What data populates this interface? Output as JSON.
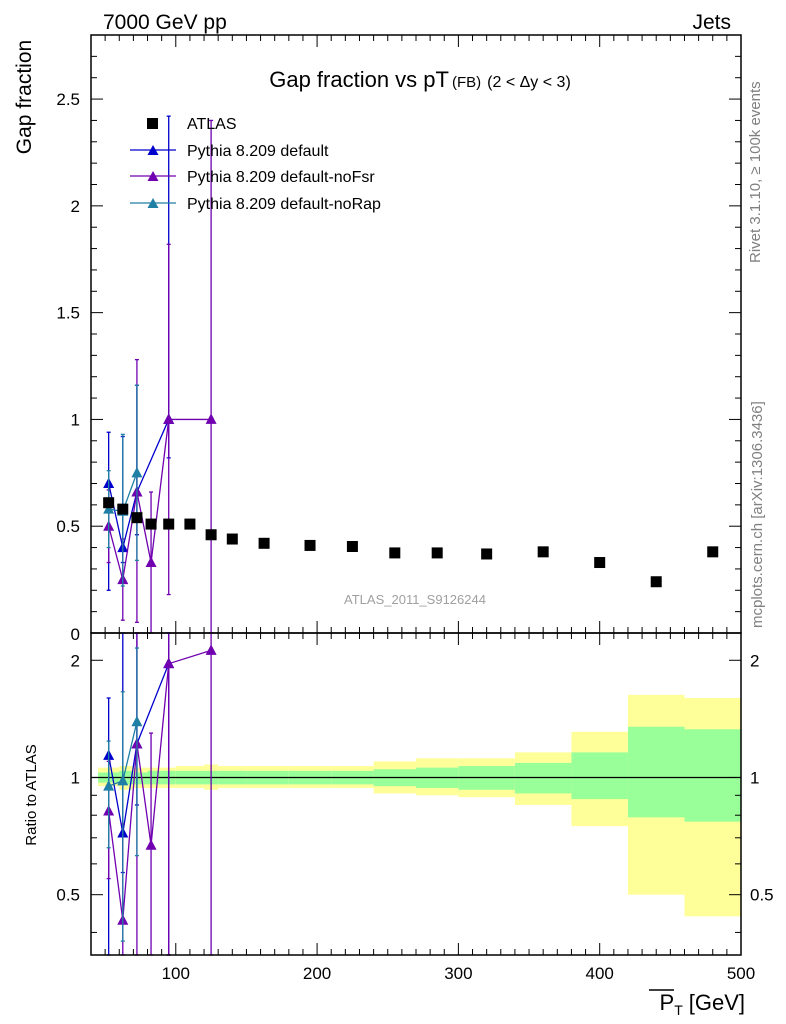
{
  "header": {
    "left": "7000 GeV pp",
    "right": "Jets"
  },
  "side_labels": {
    "rivet": "Rivet 3.1.10, ≥ 100k events",
    "mcplots": "mcplots.cern.ch [arXiv:1306.3436]"
  },
  "colors": {
    "data": "#000000",
    "default": "#0000cc",
    "noFsr": "#7000b0",
    "noRap": "#1f7fa5",
    "band_outer": "#ffff99",
    "band_inner": "#99ff99"
  },
  "chart_data": [
    {
      "type": "scatter",
      "title_main": "Gap fraction vs pT",
      "title_sub": "(FB)",
      "title_range": "(2 < Δy < 3)",
      "ylabel": "Gap fraction",
      "watermark": "ATLAS_2011_S9126244",
      "xlim": [
        40,
        500
      ],
      "ylim": [
        0,
        2.8
      ],
      "yticks": [
        0.5,
        1,
        1.5,
        2,
        2.5
      ],
      "ytick_labels": [
        "0.5",
        "1",
        "1.5",
        "2",
        "2.5"
      ],
      "y_zero_label": "0",
      "legend": {
        "position": "top-left",
        "entries": [
          "ATLAS",
          "Pythia 8.209 default",
          "Pythia 8.209 default-noFsr",
          "Pythia 8.209 default-noRap"
        ]
      },
      "series": [
        {
          "name": "ATLAS",
          "marker": "square",
          "x": [
            52.5,
            62.5,
            72.5,
            82.5,
            95,
            110,
            125,
            140,
            162.5,
            195,
            225,
            255,
            285,
            320,
            360,
            400,
            440,
            480
          ],
          "y": [
            0.61,
            0.58,
            0.54,
            0.51,
            0.51,
            0.51,
            0.46,
            0.44,
            0.42,
            0.41,
            0.405,
            0.375,
            0.375,
            0.37,
            0.38,
            0.33,
            0.24,
            0.38
          ]
        },
        {
          "name": "Pythia 8.209 default",
          "marker": "triangle",
          "x": [
            52.5,
            62.5,
            72.5,
            95
          ],
          "y": [
            0.7,
            0.4,
            0.66,
            1.0
          ],
          "yerr_low": [
            0.2,
            0.33,
            0.46,
            0.82
          ],
          "yerr_high": [
            0.94,
            0.92,
            1.16,
            2.42
          ]
        },
        {
          "name": "Pythia 8.209 default-noFsr",
          "marker": "triangle",
          "x": [
            52.5,
            62.5,
            72.5,
            82.5,
            95,
            125
          ],
          "y": [
            0.5,
            0.25,
            0.66,
            0.33,
            1.0,
            1.0
          ],
          "yerr_low": [
            0.33,
            0.06,
            0.05,
            0.0,
            0.18,
            0.0
          ],
          "yerr_high": [
            0.67,
            0.44,
            1.28,
            0.66,
            1.82,
            2.4
          ]
        },
        {
          "name": "Pythia 8.209 default-noRap",
          "marker": "triangle",
          "x": [
            52.5,
            62.5,
            72.5
          ],
          "y": [
            0.58,
            0.57,
            0.75
          ],
          "yerr_low": [
            0.4,
            0.22,
            0.34
          ],
          "yerr_high": [
            0.76,
            0.93,
            1.16
          ]
        }
      ]
    },
    {
      "type": "line",
      "ylabel": "Ratio to ATLAS",
      "xlabel_main": "P",
      "xlabel_sub": "T",
      "xlabel_unit": "[GeV]",
      "xlim": [
        40,
        500
      ],
      "ylim": [
        0.35,
        2.35
      ],
      "ylog": true,
      "xticks": [
        100,
        200,
        300,
        400,
        500
      ],
      "xtick_labels": [
        "100",
        "200",
        "300",
        "400",
        "500"
      ],
      "yticks": [
        0.5,
        1,
        2
      ],
      "ytick_labels": [
        "0.5",
        "1",
        "2"
      ],
      "bands": {
        "edges": [
          45,
          60,
          70,
          80,
          90,
          100,
          120,
          130,
          150,
          180,
          210,
          240,
          270,
          300,
          340,
          380,
          420,
          460,
          500
        ],
        "outer_low": [
          0.95,
          0.93,
          0.94,
          0.94,
          0.94,
          0.94,
          0.93,
          0.94,
          0.94,
          0.94,
          0.94,
          0.91,
          0.9,
          0.89,
          0.85,
          0.75,
          0.5,
          0.44
        ],
        "outer_high": [
          1.06,
          1.07,
          1.06,
          1.06,
          1.06,
          1.07,
          1.08,
          1.07,
          1.07,
          1.07,
          1.07,
          1.1,
          1.12,
          1.12,
          1.16,
          1.31,
          1.63,
          1.6
        ],
        "inner_low": [
          0.97,
          0.96,
          0.96,
          0.96,
          0.96,
          0.96,
          0.96,
          0.96,
          0.96,
          0.96,
          0.96,
          0.95,
          0.94,
          0.93,
          0.91,
          0.88,
          0.79,
          0.77
        ],
        "inner_high": [
          1.03,
          1.04,
          1.03,
          1.04,
          1.04,
          1.04,
          1.04,
          1.04,
          1.04,
          1.04,
          1.04,
          1.05,
          1.06,
          1.07,
          1.09,
          1.16,
          1.35,
          1.33
        ]
      },
      "series": [
        {
          "name": "Pythia 8.209 default",
          "marker": "triangle",
          "x": [
            52.5,
            62.5,
            72.5,
            95
          ],
          "y": [
            1.14,
            0.72,
            1.22,
            1.96
          ],
          "yerr_low": [
            0.33,
            0.57,
            0.85,
            0.35
          ],
          "yerr_high": [
            1.6,
            2.35,
            2.35,
            2.35
          ]
        },
        {
          "name": "Pythia 8.209 default-noFsr",
          "marker": "triangle",
          "x": [
            52.5,
            62.5,
            72.5,
            82.5,
            95,
            125
          ],
          "y": [
            0.82,
            0.43,
            1.22,
            0.67,
            1.96,
            2.12
          ],
          "yerr_low": [
            0.55,
            0.35,
            0.35,
            0.35,
            0.35,
            0.35
          ],
          "yerr_high": [
            1.1,
            0.76,
            2.35,
            1.3,
            2.35,
            2.35
          ]
        },
        {
          "name": "Pythia 8.209 default-noRap",
          "marker": "triangle",
          "x": [
            52.5,
            62.5,
            72.5
          ],
          "y": [
            0.95,
            0.98,
            1.39
          ],
          "yerr_low": [
            0.66,
            0.38,
            0.63
          ],
          "yerr_high": [
            1.24,
            1.66,
            2.15
          ]
        }
      ]
    }
  ]
}
